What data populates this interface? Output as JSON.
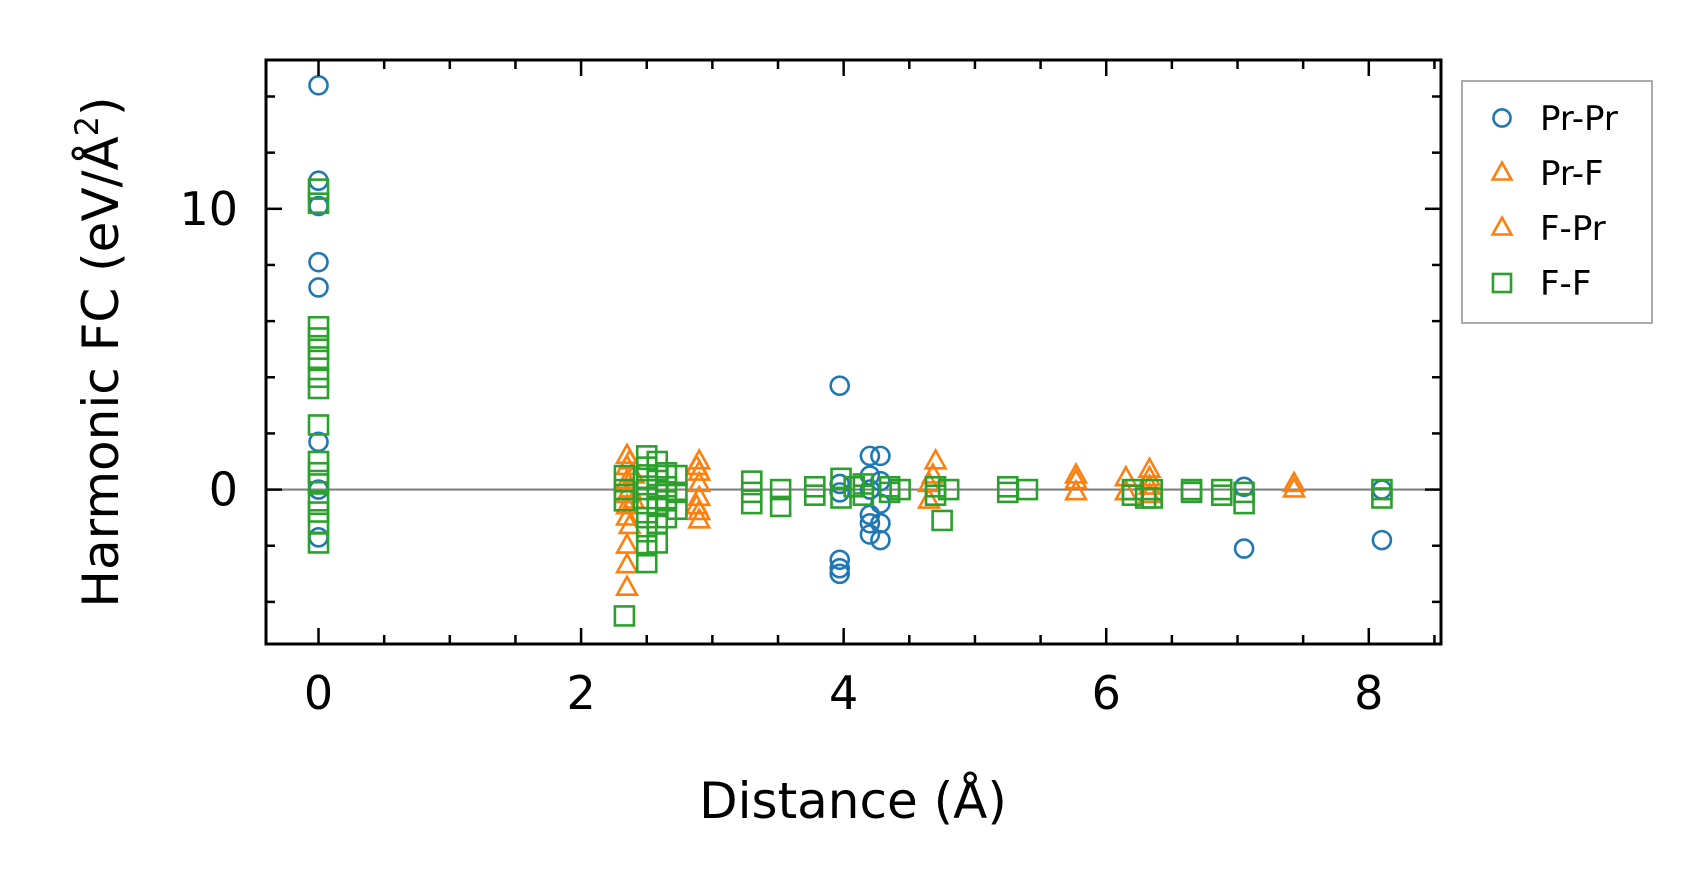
{
  "chart_data": {
    "type": "scatter",
    "xlabel": "Distance (Å)",
    "ylabel": "Harmonic FC (eV/Å",
    "ylabel_superscript": "2",
    "ylabel_suffix": ")",
    "xlim": [
      -0.4,
      8.55
    ],
    "ylim": [
      -5.5,
      15.3
    ],
    "xticks": [
      0,
      2,
      4,
      6,
      8
    ],
    "xtick_labels": [
      "0",
      "2",
      "4",
      "6",
      "8"
    ],
    "yticks": [
      0,
      10
    ],
    "ytick_labels": [
      "0",
      "10"
    ],
    "zero_line": true,
    "grid": false,
    "legend_position": "outside-right",
    "colors": {
      "blue": "#1f77b4",
      "orange": "#ff7f0e",
      "green": "#2ca02c",
      "zero_line": "#808080"
    },
    "series": [
      {
        "name": "Pr-Pr",
        "marker": "circle",
        "color": "#1f77b4",
        "points": [
          [
            0,
            14.4
          ],
          [
            0,
            11.0
          ],
          [
            0,
            10.1
          ],
          [
            0,
            8.1
          ],
          [
            0,
            7.2
          ],
          [
            0,
            1.7
          ],
          [
            0,
            0
          ],
          [
            0,
            -1.7
          ],
          [
            3.97,
            3.7
          ],
          [
            3.97,
            0.2
          ],
          [
            3.97,
            -0.1
          ],
          [
            3.97,
            -2.5
          ],
          [
            3.97,
            -2.8
          ],
          [
            3.97,
            -3.0
          ],
          [
            4.2,
            1.2
          ],
          [
            4.2,
            0.5
          ],
          [
            4.2,
            0
          ],
          [
            4.2,
            -0.9
          ],
          [
            4.2,
            -1.2
          ],
          [
            4.2,
            -1.6
          ],
          [
            4.28,
            1.2
          ],
          [
            4.28,
            0.3
          ],
          [
            4.28,
            -0.5
          ],
          [
            4.28,
            -1.2
          ],
          [
            4.28,
            -1.8
          ],
          [
            7.05,
            0.1
          ],
          [
            7.05,
            -2.1
          ],
          [
            8.1,
            0.0
          ],
          [
            8.1,
            -1.8
          ]
        ]
      },
      {
        "name": "Pr-F",
        "marker": "triangle",
        "color": "#ff7f0e",
        "points": [
          [
            2.35,
            1.2
          ],
          [
            2.35,
            0.8
          ],
          [
            2.35,
            0.3
          ],
          [
            2.35,
            -0.2
          ],
          [
            2.35,
            -0.6
          ],
          [
            2.35,
            -1.0
          ],
          [
            2.35,
            -2.0
          ],
          [
            2.35,
            -2.7
          ],
          [
            2.35,
            -3.5
          ],
          [
            2.4,
            0.5
          ],
          [
            2.4,
            -0.4
          ],
          [
            2.9,
            1.0
          ],
          [
            2.9,
            0.6
          ],
          [
            2.9,
            0.2
          ],
          [
            2.9,
            -0.3
          ],
          [
            2.9,
            -0.8
          ],
          [
            2.9,
            -1.1
          ],
          [
            4.65,
            0.2
          ],
          [
            4.65,
            -0.4
          ],
          [
            4.7,
            1.0
          ],
          [
            5.77,
            0.5
          ],
          [
            5.77,
            -0.1
          ],
          [
            6.15,
            0.4
          ],
          [
            6.15,
            -0.1
          ],
          [
            6.33,
            0.7
          ],
          [
            6.33,
            0.1
          ],
          [
            6.33,
            -0.2
          ],
          [
            7.43,
            0.2
          ]
        ]
      },
      {
        "name": "F-Pr",
        "marker": "triangle",
        "color": "#ff7f0e",
        "points": [
          [
            2.37,
            1.0
          ],
          [
            2.37,
            0.0
          ],
          [
            2.37,
            -1.3
          ],
          [
            2.88,
            0.8
          ],
          [
            2.88,
            -0.6
          ],
          [
            4.68,
            0.5
          ],
          [
            5.77,
            0.3
          ],
          [
            6.33,
            0.4
          ],
          [
            7.43,
            0.0
          ]
        ]
      },
      {
        "name": "F-F",
        "marker": "square",
        "color": "#2ca02c",
        "points": [
          [
            0,
            10.7
          ],
          [
            0,
            10.2
          ],
          [
            0,
            5.8
          ],
          [
            0,
            5.4
          ],
          [
            0,
            5.0
          ],
          [
            0,
            4.6
          ],
          [
            0,
            4.0
          ],
          [
            0,
            3.6
          ],
          [
            0,
            2.3
          ],
          [
            0,
            1.0
          ],
          [
            0,
            0.6
          ],
          [
            0,
            0.2
          ],
          [
            0,
            -0.4
          ],
          [
            0,
            -0.8
          ],
          [
            0,
            -1.2
          ],
          [
            0,
            -1.9
          ],
          [
            2.33,
            0.5
          ],
          [
            2.33,
            0.0
          ],
          [
            2.33,
            -0.4
          ],
          [
            2.33,
            -4.5
          ],
          [
            2.5,
            1.2
          ],
          [
            2.5,
            0.8
          ],
          [
            2.5,
            0.4
          ],
          [
            2.5,
            0.0
          ],
          [
            2.5,
            -0.5
          ],
          [
            2.5,
            -1.0
          ],
          [
            2.5,
            -1.5
          ],
          [
            2.5,
            -2.0
          ],
          [
            2.5,
            -2.6
          ],
          [
            2.58,
            1.0
          ],
          [
            2.58,
            0.5
          ],
          [
            2.58,
            0.0
          ],
          [
            2.58,
            -0.6
          ],
          [
            2.58,
            -1.2
          ],
          [
            2.58,
            -1.9
          ],
          [
            2.65,
            0.6
          ],
          [
            2.65,
            0.1
          ],
          [
            2.65,
            -0.4
          ],
          [
            2.65,
            -1.0
          ],
          [
            2.73,
            0.5
          ],
          [
            2.73,
            -0.1
          ],
          [
            2.73,
            -0.7
          ],
          [
            3.3,
            0.3
          ],
          [
            3.3,
            -0.1
          ],
          [
            3.3,
            -0.5
          ],
          [
            3.52,
            0.0
          ],
          [
            3.52,
            -0.6
          ],
          [
            3.78,
            0.1
          ],
          [
            3.78,
            -0.2
          ],
          [
            3.98,
            0.4
          ],
          [
            3.98,
            -0.3
          ],
          [
            4.08,
            0.1
          ],
          [
            4.15,
            0.2
          ],
          [
            4.15,
            -0.2
          ],
          [
            4.35,
            0.1
          ],
          [
            4.35,
            -0.1
          ],
          [
            4.43,
            0.0
          ],
          [
            4.7,
            0.1
          ],
          [
            4.7,
            -0.2
          ],
          [
            4.75,
            -1.1
          ],
          [
            4.8,
            0.0
          ],
          [
            5.25,
            0.1
          ],
          [
            5.25,
            -0.1
          ],
          [
            5.4,
            0.0
          ],
          [
            6.2,
            0.0
          ],
          [
            6.2,
            -0.2
          ],
          [
            6.3,
            -0.3
          ],
          [
            6.35,
            0.0
          ],
          [
            6.35,
            -0.3
          ],
          [
            6.65,
            0.0
          ],
          [
            6.65,
            -0.1
          ],
          [
            6.88,
            0.0
          ],
          [
            6.88,
            -0.2
          ],
          [
            7.05,
            -0.1
          ],
          [
            7.05,
            -0.5
          ],
          [
            8.1,
            0.0
          ],
          [
            8.1,
            -0.3
          ]
        ]
      }
    ],
    "legend_entries": [
      {
        "name": "Pr-Pr",
        "marker": "circle",
        "color": "#1f77b4"
      },
      {
        "name": "Pr-F",
        "marker": "triangle",
        "color": "#ff7f0e"
      },
      {
        "name": "F-Pr",
        "marker": "triangle",
        "color": "#ff7f0e"
      },
      {
        "name": "F-F",
        "marker": "square",
        "color": "#2ca02c"
      }
    ]
  }
}
